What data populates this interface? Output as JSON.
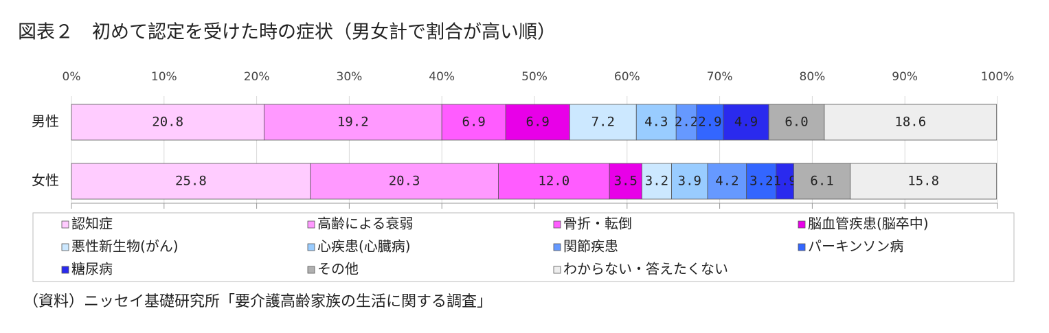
{
  "chart_data": {
    "type": "stacked-bar-horizontal",
    "title": "図表２　初めて認定を受けた時の症状（男女計で割合が高い順）",
    "source": "（資料）ニッセイ基礎研究所「要介護高齢家族の生活に関する調査」",
    "categories": [
      "男性",
      "女性"
    ],
    "xlim": [
      0,
      100
    ],
    "xticks": [
      {
        "value": 0,
        "label": "0%"
      },
      {
        "value": 10,
        "label": "10%"
      },
      {
        "value": 20,
        "label": "20%"
      },
      {
        "value": 30,
        "label": "30%"
      },
      {
        "value": 40,
        "label": "40%"
      },
      {
        "value": 50,
        "label": "50%"
      },
      {
        "value": 60,
        "label": "60%"
      },
      {
        "value": 70,
        "label": "70%"
      },
      {
        "value": 80,
        "label": "80%"
      },
      {
        "value": 90,
        "label": "90%"
      },
      {
        "value": 100,
        "label": "100%"
      }
    ],
    "grid": true,
    "legend": "bottom",
    "series": [
      {
        "name": "認知症",
        "color": "#ffccff",
        "values": [
          20.8,
          25.8
        ]
      },
      {
        "name": "高齢による衰弱",
        "color": "#ff99ff",
        "values": [
          19.2,
          20.3
        ]
      },
      {
        "name": "骨折・転倒",
        "color": "#ff5cff",
        "values": [
          6.9,
          12
        ],
        "value_labels": [
          "6.9",
          "12.0"
        ]
      },
      {
        "name": "脳血管疾患(脳卒中)",
        "color": "#e800e8",
        "values": [
          6.9,
          3.5
        ]
      },
      {
        "name": "悪性新生物(がん)",
        "color": "#cce8ff",
        "values": [
          7.2,
          3.2
        ]
      },
      {
        "name": "心疾患(心臓病)",
        "color": "#99ccff",
        "values": [
          4.3,
          3.9
        ]
      },
      {
        "name": "関節疾患",
        "color": "#6699ff",
        "values": [
          2.2,
          4.2
        ]
      },
      {
        "name": "パーキンソン病",
        "color": "#3366ff",
        "values": [
          2.9,
          3.2
        ]
      },
      {
        "name": "糖尿病",
        "color": "#2a2aee",
        "values": [
          4.9,
          1.9
        ]
      },
      {
        "name": "その他",
        "color": "#b0b0b0",
        "values": [
          6,
          6.1
        ],
        "value_labels": [
          "6.0",
          "6.1"
        ]
      },
      {
        "name": "わからない・答えたくない",
        "color": "#eeeeee",
        "values": [
          18.6,
          15.8
        ]
      }
    ]
  }
}
